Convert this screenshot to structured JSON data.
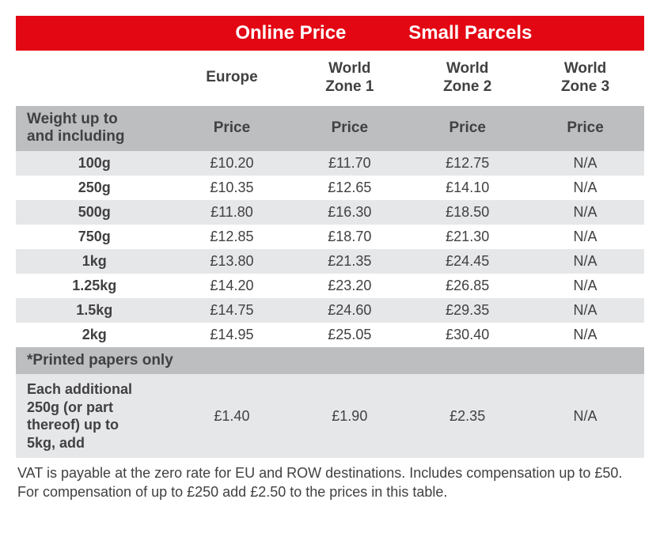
{
  "header": {
    "left": "Online Price",
    "right": "Small Parcels"
  },
  "zones": [
    "Europe",
    "World\nZone 1",
    "World\nZone 2",
    "World\nZone 3"
  ],
  "subheader": {
    "label": "Weight up to\nand including",
    "cols": [
      "Price",
      "Price",
      "Price",
      "Price"
    ]
  },
  "rows": [
    {
      "w": "100g",
      "p": [
        "£10.20",
        "£11.70",
        "£12.75",
        "N/A"
      ]
    },
    {
      "w": "250g",
      "p": [
        "£10.35",
        "£12.65",
        "£14.10",
        "N/A"
      ]
    },
    {
      "w": "500g",
      "p": [
        "£11.80",
        "£16.30",
        "£18.50",
        "N/A"
      ]
    },
    {
      "w": "750g",
      "p": [
        "£12.85",
        "£18.70",
        "£21.30",
        "N/A"
      ]
    },
    {
      "w": "1kg",
      "p": [
        "£13.80",
        "£21.35",
        "£24.45",
        "N/A"
      ]
    },
    {
      "w": "1.25kg",
      "p": [
        "£14.20",
        "£23.20",
        "£26.85",
        "N/A"
      ]
    },
    {
      "w": "1.5kg",
      "p": [
        "£14.75",
        "£24.60",
        "£29.35",
        "N/A"
      ]
    },
    {
      "w": "2kg",
      "p": [
        "£14.95",
        "£25.05",
        "£30.40",
        "N/A"
      ]
    }
  ],
  "note": "*Printed papers only",
  "addrow": {
    "label": "Each additional\n250g (or part\nthereof) up to\n5kg, add",
    "p": [
      "£1.40",
      "£1.90",
      "£2.35",
      "N/A"
    ]
  },
  "footnote": "VAT is payable at the zero rate for EU and ROW destinations. Includes compensation up to £50. For compensation of up to £250 add £2.50 to the prices in this table.",
  "style": {
    "band_bg": "#e30613",
    "band_fg": "#ffffff",
    "gray_bg": "#bcbec0",
    "light_bg": "#e6e7e8",
    "white_bg": "#ffffff",
    "text": "#414042",
    "font_header": 24,
    "font_sub": 19,
    "font_body": 18
  }
}
